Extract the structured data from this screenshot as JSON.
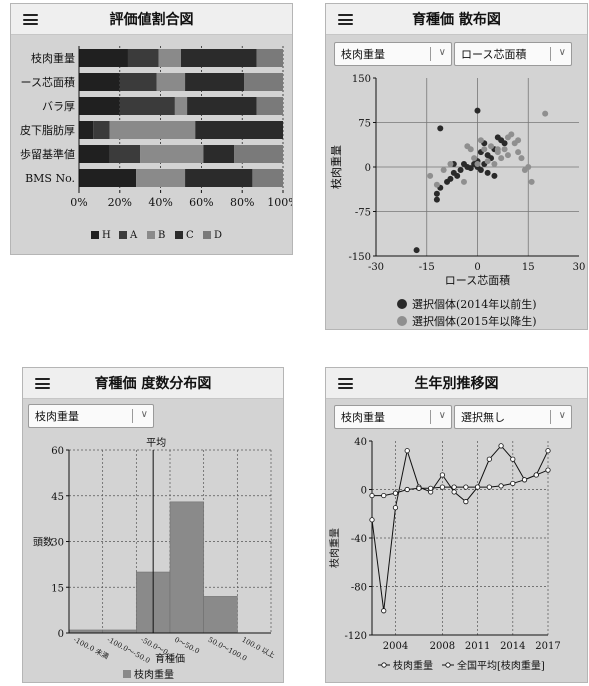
{
  "panels": {
    "ratio": {
      "title": "評価値割合図"
    },
    "scatter": {
      "title": "育種価 散布図",
      "select_left": "枝肉重量",
      "select_right": "ロース芯面積"
    },
    "histogram": {
      "title": "育種価 度数分布図",
      "select_left": "枝肉重量"
    },
    "trend": {
      "title": "生年別推移図",
      "select_left": "枝肉重量",
      "select_right": "選択無し"
    }
  },
  "icons": {
    "menu": "hamburger-menu-icon",
    "dropdown": "chevron-down-icon",
    "legend_marker_line": "circle-line-icon"
  },
  "colors": {
    "H": "#202020",
    "A": "#3b3b3b",
    "B": "#8a8a8a",
    "C": "#2b2b2b",
    "D": "#7a7a7a",
    "scatter_old": "#2a2a2a",
    "scatter_new": "#8f8f8f",
    "hist_bar": "#8a8a8a"
  },
  "chart_data": [
    {
      "type": "bar",
      "orientation": "horizontal-stacked",
      "categories": [
        "枝肉重量",
        "ロース芯面積",
        "バラ厚",
        "皮下脂肪厚",
        "歩留基準値",
        "BMS No."
      ],
      "category_labels_shown": [
        "枝肉重量",
        "ース芯面積",
        "バラ厚",
        "皮下脂肪厚",
        "歩留基準値",
        "BMS No."
      ],
      "series": [
        {
          "name": "H",
          "values": [
            24,
            20,
            20,
            7,
            15,
            28
          ]
        },
        {
          "name": "A",
          "values": [
            15,
            18,
            27,
            8,
            15,
            0
          ]
        },
        {
          "name": "B",
          "values": [
            11,
            14,
            6,
            42,
            31,
            24
          ]
        },
        {
          "name": "C",
          "values": [
            37,
            29,
            34,
            43,
            15,
            33
          ]
        },
        {
          "name": "D",
          "values": [
            13,
            19,
            13,
            0,
            24,
            15
          ]
        }
      ],
      "xticks": [
        "0%",
        "20%",
        "40%",
        "60%",
        "80%",
        "100%"
      ],
      "xlim": [
        0,
        100
      ],
      "legend": "bottom",
      "grid": true
    },
    {
      "type": "scatter",
      "xlabel": "ロース芯面積",
      "ylabel": "枝肉重量",
      "xlim": [
        -30,
        30
      ],
      "ylim": [
        -150,
        150
      ],
      "xticks": [
        "-30",
        "-15",
        "0",
        "15",
        "30"
      ],
      "yticks": [
        "150",
        "75",
        "0",
        "-75",
        "-150"
      ],
      "legend": "bottom",
      "grid": true,
      "series": [
        {
          "name": "選択個体(2014年以前生)",
          "points": [
            [
              -18,
              -140
            ],
            [
              -12,
              -55
            ],
            [
              -12,
              -45
            ],
            [
              -11,
              -35
            ],
            [
              -9,
              -25
            ],
            [
              -8,
              -20
            ],
            [
              -7,
              -10
            ],
            [
              -7,
              5
            ],
            [
              -6,
              -15
            ],
            [
              -5,
              -5
            ],
            [
              -4,
              5
            ],
            [
              -3,
              0
            ],
            [
              -2,
              -2
            ],
            [
              -1,
              5
            ],
            [
              0,
              0
            ],
            [
              0,
              10
            ],
            [
              1,
              -5
            ],
            [
              1,
              25
            ],
            [
              2,
              40
            ],
            [
              2,
              5
            ],
            [
              3,
              -10
            ],
            [
              3,
              20
            ],
            [
              4,
              15
            ],
            [
              5,
              -15
            ],
            [
              5,
              30
            ],
            [
              6,
              50
            ],
            [
              7,
              45
            ],
            [
              8,
              40
            ],
            [
              -11,
              65
            ],
            [
              0,
              95
            ]
          ]
        },
        {
          "name": "選択個体(2015年以降生)",
          "points": [
            [
              -14,
              -15
            ],
            [
              -12,
              -30
            ],
            [
              -10,
              -5
            ],
            [
              -8,
              5
            ],
            [
              -4,
              -25
            ],
            [
              -3,
              35
            ],
            [
              -2,
              30
            ],
            [
              -1,
              15
            ],
            [
              0,
              5
            ],
            [
              1,
              45
            ],
            [
              2,
              30
            ],
            [
              3,
              10
            ],
            [
              4,
              35
            ],
            [
              5,
              5
            ],
            [
              6,
              30
            ],
            [
              7,
              15
            ],
            [
              8,
              30
            ],
            [
              9,
              20
            ],
            [
              10,
              55
            ],
            [
              11,
              40
            ],
            [
              12,
              45
            ],
            [
              13,
              15
            ],
            [
              14,
              -5
            ],
            [
              15,
              0
            ],
            [
              16,
              -25
            ],
            [
              20,
              90
            ],
            [
              6,
              25
            ],
            [
              9,
              50
            ],
            [
              12,
              25
            ]
          ]
        }
      ]
    },
    {
      "type": "bar",
      "title": "",
      "xlabel": "育種価",
      "ylabel": "頭数",
      "categories": [
        "-100.0 未満",
        "-100.0〜-50.0",
        "-50.0〜0",
        "0〜50.0",
        "50.0〜100.0",
        "100.0 以上"
      ],
      "series": [
        {
          "name": "枝肉重量",
          "values": [
            1,
            1,
            20,
            43,
            12,
            0
          ]
        }
      ],
      "ylim": [
        0,
        60
      ],
      "yticks": [
        "60",
        "45",
        "30",
        "15",
        "0"
      ],
      "annotation": "平均",
      "annotation_x": 2.5,
      "legend": "bottom",
      "grid": true
    },
    {
      "type": "line",
      "ylabel": "枝肉重量",
      "x": [
        2002,
        2003,
        2004,
        2005,
        2006,
        2007,
        2008,
        2009,
        2010,
        2011,
        2012,
        2013,
        2014,
        2015,
        2016,
        2017
      ],
      "xticks": [
        "2004",
        "2008",
        "2011",
        "2014",
        "2017"
      ],
      "ylim": [
        -120,
        40
      ],
      "yticks": [
        "40",
        "0",
        "-40",
        "-80",
        "-120"
      ],
      "legend": "bottom",
      "grid": true,
      "series": [
        {
          "name": "枝肉重量",
          "values": [
            -25,
            -100,
            -15,
            32,
            2,
            -2,
            12,
            -2,
            -10,
            2,
            25,
            36,
            25,
            8,
            12,
            32
          ]
        },
        {
          "name": "全国平均[枝肉重量]",
          "values": [
            -5,
            -5,
            -3,
            0,
            1,
            1,
            2,
            2,
            2,
            2,
            2,
            3,
            5,
            8,
            12,
            16
          ]
        }
      ]
    }
  ]
}
